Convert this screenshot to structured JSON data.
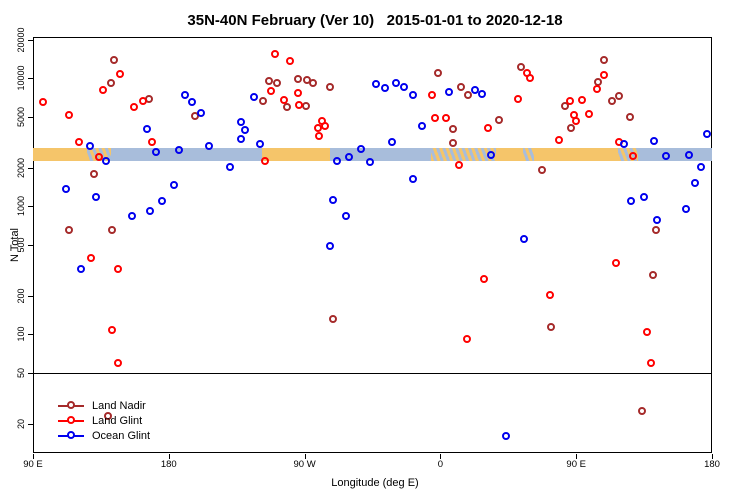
{
  "title": "35N-40N February (Ver 10)   2015-01-01 to 2020-12-18",
  "chart_data": {
    "type": "scatter",
    "title": "35N-40N February (Ver 10)   2015-01-01 to 2020-12-18",
    "xlabel": "Longitude (deg E)",
    "ylabel": "N Total",
    "x_axis": {
      "lim": [
        90,
        540
      ],
      "ticks": [
        {
          "lon": 90,
          "label": "90 E"
        },
        {
          "lon": 180,
          "label": "180"
        },
        {
          "lon": 270,
          "label": "90 W"
        },
        {
          "lon": 360,
          "label": "0"
        },
        {
          "lon": 450,
          "label": "90 E"
        },
        {
          "lon": 540,
          "label": "180"
        }
      ]
    },
    "y_axis": {
      "scale": "log",
      "lim": [
        15,
        22000
      ],
      "ticks": [
        20,
        50,
        100,
        200,
        500,
        1000,
        2000,
        5000,
        10000,
        20000
      ]
    },
    "reference_line_n": 50,
    "grid": false,
    "legend": {
      "position": "bottom-left"
    },
    "band": {
      "description": "land(orange)/ocean(blue) strip",
      "n_low": 2250,
      "n_high": 2850,
      "land_color": "#F5C56A",
      "ocean_color": "#A8BDDB",
      "segments": [
        {
          "from": 90,
          "to": 126,
          "type": "land"
        },
        {
          "from": 126,
          "to": 142,
          "type": "mix"
        },
        {
          "from": 142,
          "to": 242,
          "type": "ocean"
        },
        {
          "from": 242,
          "to": 287,
          "type": "land"
        },
        {
          "from": 287,
          "to": 354,
          "type": "ocean"
        },
        {
          "from": 354,
          "to": 397,
          "type": "mix"
        },
        {
          "from": 397,
          "to": 415,
          "type": "land"
        },
        {
          "from": 415,
          "to": 422,
          "type": "mix"
        },
        {
          "from": 422,
          "to": 478,
          "type": "land"
        },
        {
          "from": 478,
          "to": 491,
          "type": "mix"
        },
        {
          "from": 491,
          "to": 540,
          "type": "ocean"
        }
      ]
    },
    "series": [
      {
        "name": "Land Nadir",
        "color": "#A52A2A",
        "points": [
          [
            144,
            13700
          ],
          [
            142,
            9060
          ],
          [
            167,
            6900
          ],
          [
            198,
            5000
          ],
          [
            131,
            1790
          ],
          [
            114,
            643
          ],
          [
            143,
            643
          ],
          [
            140,
            23
          ],
          [
            247,
            9370
          ],
          [
            252,
            9060
          ],
          [
            266,
            9730
          ],
          [
            272,
            9550
          ],
          [
            276,
            9060
          ],
          [
            287,
            8430
          ],
          [
            243,
            6550
          ],
          [
            259,
            5880
          ],
          [
            271,
            5980
          ],
          [
            289,
            130
          ],
          [
            359,
            11000
          ],
          [
            374,
            8430
          ],
          [
            379,
            7300
          ],
          [
            369,
            3960
          ],
          [
            399,
            4650
          ],
          [
            414,
            12100
          ],
          [
            369,
            3080
          ],
          [
            428,
            1890
          ],
          [
            469,
            13700
          ],
          [
            465,
            9220
          ],
          [
            474,
            6550
          ],
          [
            479,
            7170
          ],
          [
            443,
            5980
          ],
          [
            447,
            4030
          ],
          [
            486,
            4910
          ],
          [
            503,
            643
          ],
          [
            501,
            286
          ],
          [
            434,
            114
          ],
          [
            494,
            25
          ]
        ]
      },
      {
        "name": "Land Glint",
        "color": "#FF0000",
        "points": [
          [
            97,
            6440
          ],
          [
            114,
            5090
          ],
          [
            148,
            10800
          ],
          [
            137,
            7980
          ],
          [
            163,
            6550
          ],
          [
            157,
            5880
          ],
          [
            121,
            3130
          ],
          [
            134,
            2390
          ],
          [
            129,
            390
          ],
          [
            147,
            320
          ],
          [
            143,
            108
          ],
          [
            147,
            59
          ],
          [
            169,
            3130
          ],
          [
            244,
            2230
          ],
          [
            251,
            15300
          ],
          [
            261,
            13500
          ],
          [
            248,
            7840
          ],
          [
            266,
            7570
          ],
          [
            257,
            6670
          ],
          [
            267,
            6100
          ],
          [
            282,
            4570
          ],
          [
            284,
            4180
          ],
          [
            279,
            4030
          ],
          [
            280,
            3490
          ],
          [
            355,
            7300
          ],
          [
            357,
            4820
          ],
          [
            364,
            4820
          ],
          [
            392,
            4030
          ],
          [
            412,
            6900
          ],
          [
            418,
            11000
          ],
          [
            420,
            9900
          ],
          [
            373,
            2070
          ],
          [
            389,
            266
          ],
          [
            378,
            91
          ],
          [
            433,
            203
          ],
          [
            439,
            3250
          ],
          [
            446,
            6550
          ],
          [
            454,
            6670
          ],
          [
            449,
            5090
          ],
          [
            459,
            5190
          ],
          [
            450,
            4570
          ],
          [
            464,
            8130
          ],
          [
            469,
            10600
          ],
          [
            479,
            3130
          ],
          [
            488,
            2440
          ],
          [
            477,
            360
          ],
          [
            497,
            103
          ],
          [
            500,
            59
          ]
        ]
      },
      {
        "name": "Ocean Glint",
        "color": "#0000EE",
        "points": [
          [
            191,
            7300
          ],
          [
            196,
            6440
          ],
          [
            202,
            5270
          ],
          [
            128,
            2960
          ],
          [
            139,
            2230
          ],
          [
            112,
            1350
          ],
          [
            132,
            1170
          ],
          [
            122,
            320
          ],
          [
            166,
            3960
          ],
          [
            172,
            2620
          ],
          [
            187,
            2710
          ],
          [
            207,
            2960
          ],
          [
            184,
            1450
          ],
          [
            176,
            1100
          ],
          [
            168,
            910
          ],
          [
            156,
            840
          ],
          [
            221,
            2000
          ],
          [
            237,
            7030
          ],
          [
            228,
            4490
          ],
          [
            231,
            3890
          ],
          [
            228,
            3310
          ],
          [
            241,
            3020
          ],
          [
            292,
            2230
          ],
          [
            300,
            2390
          ],
          [
            308,
            2760
          ],
          [
            314,
            2190
          ],
          [
            328,
            3130
          ],
          [
            318,
            8890
          ],
          [
            324,
            8280
          ],
          [
            331,
            9060
          ],
          [
            336,
            8430
          ],
          [
            342,
            7300
          ],
          [
            348,
            4180
          ],
          [
            366,
            7710
          ],
          [
            383,
            7980
          ],
          [
            388,
            7430
          ],
          [
            394,
            2480
          ],
          [
            289,
            1120
          ],
          [
            298,
            840
          ],
          [
            287,
            490
          ],
          [
            342,
            1610
          ],
          [
            416,
            550
          ],
          [
            482,
            3020
          ],
          [
            502,
            3190
          ],
          [
            510,
            2440
          ],
          [
            525,
            2480
          ],
          [
            533,
            2000
          ],
          [
            537,
            3620
          ],
          [
            529,
            1500
          ],
          [
            487,
            1100
          ],
          [
            495,
            1170
          ],
          [
            504,
            780
          ],
          [
            523,
            940
          ],
          [
            404,
            16
          ]
        ]
      }
    ]
  }
}
